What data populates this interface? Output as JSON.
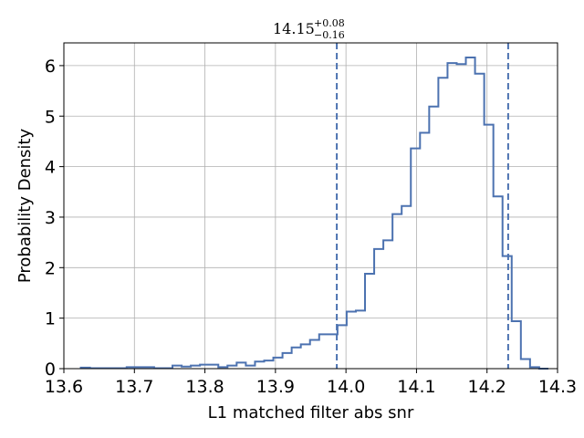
{
  "chart_data": {
    "type": "histogram",
    "title": {
      "main": "14.15",
      "plus": "+0.08",
      "minus": "−0.16"
    },
    "xlabel": "L1 matched filter abs snr",
    "ylabel": "Probability Density",
    "xlim": [
      13.6,
      14.3
    ],
    "ylim": [
      0,
      6.45
    ],
    "xticks": [
      13.6,
      13.7,
      13.8,
      13.9,
      14.0,
      14.1,
      14.2,
      14.3
    ],
    "xtick_labels": [
      "13.6",
      "13.7",
      "13.8",
      "13.9",
      "14.0",
      "14.1",
      "14.2",
      "14.3"
    ],
    "yticks": [
      0,
      1,
      2,
      3,
      4,
      5,
      6
    ],
    "ytick_labels": [
      "0",
      "1",
      "2",
      "3",
      "4",
      "5",
      "6"
    ],
    "grid": true,
    "color": "#4c72b0",
    "vlines": [
      13.987,
      14.23
    ],
    "bin_edges": [
      13.624,
      13.637,
      13.65,
      13.663,
      13.676,
      13.689,
      13.702,
      13.715,
      13.728,
      13.741,
      13.754,
      13.767,
      13.78,
      13.793,
      13.806,
      13.819,
      13.832,
      13.845,
      13.858,
      13.871,
      13.884,
      13.897,
      13.91,
      13.923,
      13.936,
      13.949,
      13.962,
      13.975,
      13.988,
      14.001,
      14.014,
      14.027,
      14.04,
      14.053,
      14.066,
      14.079,
      14.092,
      14.105,
      14.118,
      14.131,
      14.144,
      14.157,
      14.17,
      14.183,
      14.196,
      14.209,
      14.222,
      14.235,
      14.248,
      14.261,
      14.274,
      14.287
    ],
    "densities": [
      0.02,
      0.01,
      0.01,
      0.01,
      0.01,
      0.03,
      0.03,
      0.03,
      0.01,
      0.01,
      0.06,
      0.04,
      0.06,
      0.08,
      0.08,
      0.03,
      0.06,
      0.12,
      0.06,
      0.14,
      0.16,
      0.22,
      0.31,
      0.42,
      0.48,
      0.57,
      0.68,
      0.68,
      0.86,
      1.13,
      1.15,
      1.88,
      2.37,
      2.54,
      3.06,
      3.22,
      4.36,
      4.67,
      5.19,
      5.76,
      6.05,
      6.03,
      6.16,
      5.84,
      4.83,
      3.41,
      2.23,
      0.94,
      0.19,
      0.03,
      0.0
    ]
  }
}
